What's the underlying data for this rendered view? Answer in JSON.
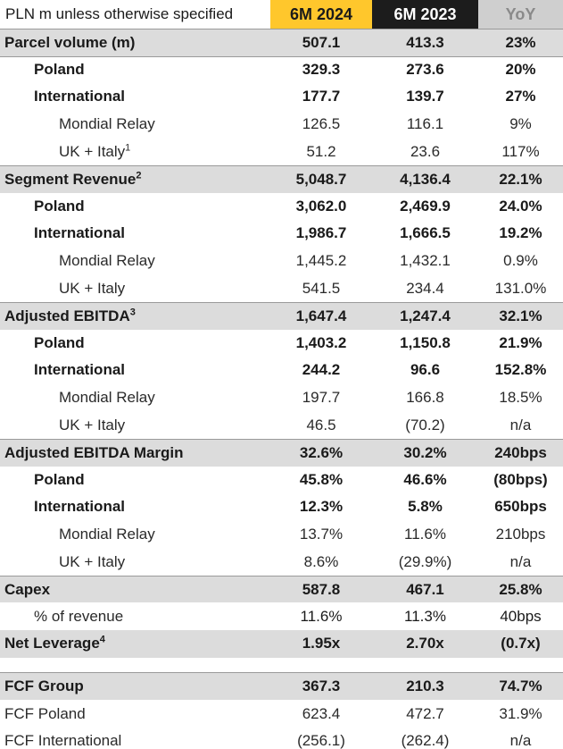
{
  "header": {
    "label": "PLN m unless otherwise specified",
    "col1": "6M 2024",
    "col2": "6M 2023",
    "col3": "YoY"
  },
  "rows": [
    {
      "label": "Parcel volume (m)",
      "sup": "",
      "c1": "507.1",
      "c2": "413.3",
      "c3": "23%"
    },
    {
      "label": "Poland",
      "sup": "",
      "c1": "329.3",
      "c2": "273.6",
      "c3": "20%"
    },
    {
      "label": "International",
      "sup": "",
      "c1": "177.7",
      "c2": "139.7",
      "c3": "27%"
    },
    {
      "label": "Mondial Relay",
      "sup": "",
      "c1": "126.5",
      "c2": "116.1",
      "c3": "9%"
    },
    {
      "label": "UK + Italy",
      "sup": "1",
      "c1": "51.2",
      "c2": "23.6",
      "c3": "117%"
    },
    {
      "label": "Segment Revenue",
      "sup": "2",
      "c1": "5,048.7",
      "c2": "4,136.4",
      "c3": "22.1%"
    },
    {
      "label": "Poland",
      "sup": "",
      "c1": "3,062.0",
      "c2": "2,469.9",
      "c3": "24.0%"
    },
    {
      "label": "International",
      "sup": "",
      "c1": "1,986.7",
      "c2": "1,666.5",
      "c3": "19.2%"
    },
    {
      "label": "Mondial Relay",
      "sup": "",
      "c1": "1,445.2",
      "c2": "1,432.1",
      "c3": "0.9%"
    },
    {
      "label": "UK + Italy",
      "sup": "",
      "c1": "541.5",
      "c2": "234.4",
      "c3": "131.0%"
    },
    {
      "label": "Adjusted EBITDA",
      "sup": "3",
      "c1": "1,647.4",
      "c2": "1,247.4",
      "c3": "32.1%"
    },
    {
      "label": "Poland",
      "sup": "",
      "c1": "1,403.2",
      "c2": "1,150.8",
      "c3": "21.9%"
    },
    {
      "label": "International",
      "sup": "",
      "c1": "244.2",
      "c2": "96.6",
      "c3": "152.8%"
    },
    {
      "label": "Mondial Relay",
      "sup": "",
      "c1": "197.7",
      "c2": "166.8",
      "c3": "18.5%"
    },
    {
      "label": "UK + Italy",
      "sup": "",
      "c1": "46.5",
      "c2": "(70.2)",
      "c3": "n/a"
    },
    {
      "label": "Adjusted EBITDA Margin",
      "sup": "",
      "c1": "32.6%",
      "c2": "30.2%",
      "c3": "240bps"
    },
    {
      "label": "Poland",
      "sup": "",
      "c1": "45.8%",
      "c2": "46.6%",
      "c3": "(80bps)"
    },
    {
      "label": "International",
      "sup": "",
      "c1": "12.3%",
      "c2": "5.8%",
      "c3": "650bps"
    },
    {
      "label": "Mondial Relay",
      "sup": "",
      "c1": "13.7%",
      "c2": "11.6%",
      "c3": "210bps"
    },
    {
      "label": "UK + Italy",
      "sup": "",
      "c1": "8.6%",
      "c2": "(29.9%)",
      "c3": "n/a"
    },
    {
      "label": "Capex",
      "sup": "",
      "c1": "587.8",
      "c2": "467.1",
      "c3": "25.8%"
    },
    {
      "label": "% of revenue",
      "sup": "",
      "c1": "11.6%",
      "c2": "11.3%",
      "c3": "40bps"
    },
    {
      "label": "Net Leverage",
      "sup": "4",
      "c1": "1.95x",
      "c2": "2.70x",
      "c3": "(0.7x)"
    },
    {
      "label": "FCF Group",
      "sup": "",
      "c1": "367.3",
      "c2": "210.3",
      "c3": "74.7%"
    },
    {
      "label": "FCF Poland",
      "sup": "",
      "c1": "623.4",
      "c2": "472.7",
      "c3": "31.9%"
    },
    {
      "label": "FCF International",
      "sup": "",
      "c1": "(256.1)",
      "c2": "(262.4)",
      "c3": "n/a"
    }
  ]
}
